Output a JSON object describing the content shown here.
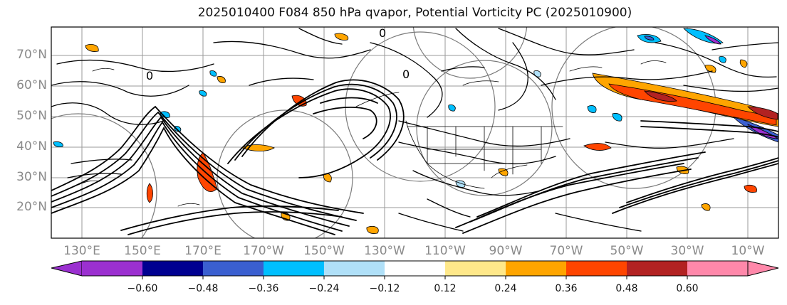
{
  "title": "2025010400 F084 850 hPa qvapor, Potential Vorticity PC (2025010900)",
  "map": {
    "lat_labels": [
      "70°N",
      "60°N",
      "50°N",
      "40°N",
      "30°N",
      "20°N"
    ],
    "lon_labels": [
      "130°E",
      "150°E",
      "170°E",
      "170°W",
      "150°W",
      "130°W",
      "110°W",
      "90°W",
      "70°W",
      "50°W",
      "30°W",
      "10°W"
    ],
    "contour_labels": [
      "0",
      "0",
      "0"
    ]
  },
  "colorbar": {
    "ticks": [
      "−0.60",
      "−0.48",
      "−0.36",
      "−0.24",
      "−0.12",
      "0.12",
      "0.24",
      "0.36",
      "0.48",
      "0.60"
    ],
    "colors": [
      "#9b30d0",
      "#000090",
      "#3a5fd0",
      "#00bfff",
      "#b0e0f8",
      "#ffffff",
      "#ffe88a",
      "#ffa500",
      "#ff4500",
      "#b22222",
      "#ff88aa",
      "#ff88aa"
    ]
  }
}
